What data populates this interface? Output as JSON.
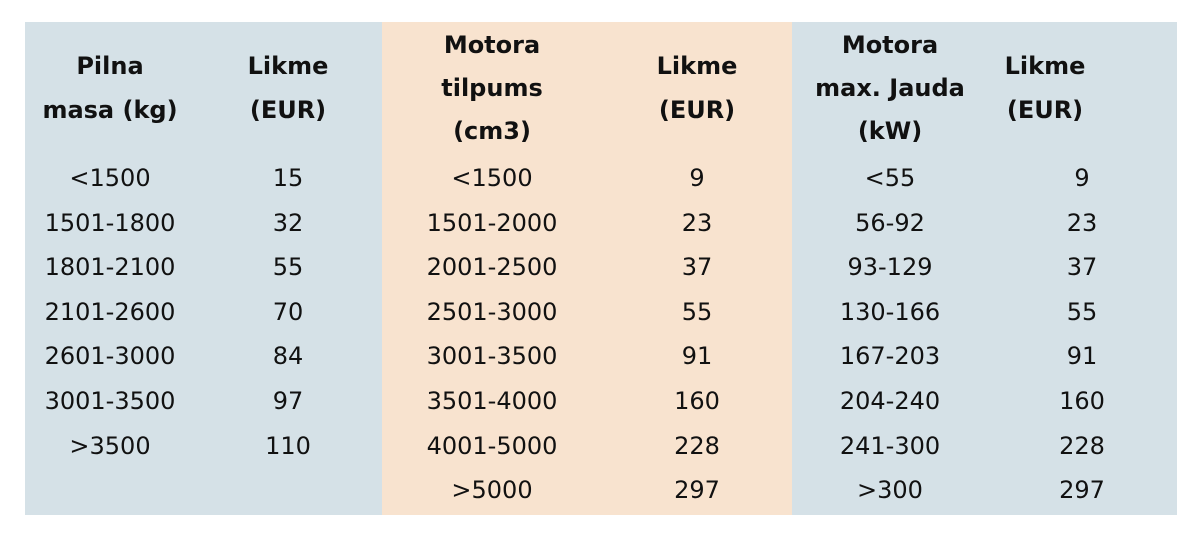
{
  "table": {
    "headers": [
      [
        "Pilna",
        "masa (kg)"
      ],
      [
        "Likme",
        "(EUR)"
      ],
      [
        "Motora",
        "tilpums",
        "(cm3)"
      ],
      [
        "Likme",
        "(EUR)"
      ],
      [
        "Motora",
        "max. Jauda",
        "(kW)"
      ],
      [
        "Likme",
        "(EUR)"
      ]
    ],
    "rows": [
      [
        "<1500",
        "15",
        "<1500",
        "9",
        "<55",
        "9"
      ],
      [
        "1501-1800",
        "32",
        "1501-2000",
        "23",
        "56-92",
        "23"
      ],
      [
        "1801-2100",
        "55",
        "2001-2500",
        "37",
        "93-129",
        "37"
      ],
      [
        "2101-2600",
        "70",
        "2501-3000",
        "55",
        "130-166",
        "55"
      ],
      [
        "2601-3000",
        "84",
        "3001-3500",
        "91",
        "167-203",
        "91"
      ],
      [
        "3001-3500",
        "97",
        "3501-4000",
        "160",
        "204-240",
        "160"
      ],
      [
        ">3500",
        "110",
        "4001-5000",
        "228",
        "241-300",
        "228"
      ],
      [
        null,
        null,
        ">5000",
        "297",
        ">300",
        "297"
      ]
    ]
  }
}
